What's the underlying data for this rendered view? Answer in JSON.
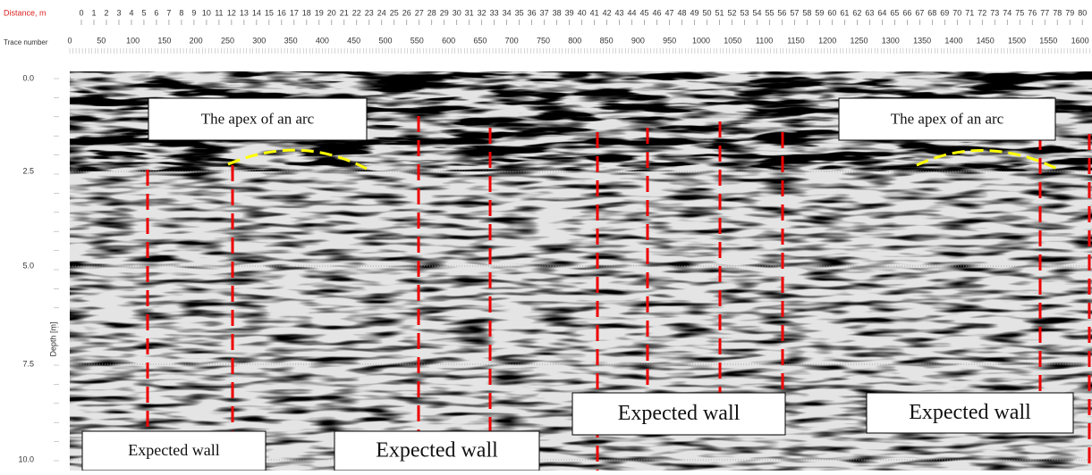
{
  "axes": {
    "distance": {
      "label": "Distance, m",
      "ticks": [
        0,
        1,
        2,
        3,
        4,
        5,
        6,
        7,
        8,
        9,
        10,
        11,
        12,
        13,
        14,
        15,
        16,
        17,
        18,
        19,
        20,
        21,
        22,
        23,
        24,
        25,
        26,
        27,
        28,
        29,
        30,
        31,
        32,
        33,
        34,
        35,
        36,
        37,
        38,
        39,
        40,
        41,
        42,
        43,
        44,
        45,
        46,
        47,
        48,
        49,
        50,
        51,
        52,
        53,
        54,
        55,
        56,
        57,
        58,
        59,
        60,
        61,
        62,
        63,
        64,
        65,
        66,
        67,
        68,
        69,
        70,
        71,
        72,
        73,
        74,
        75,
        76,
        77,
        78,
        79,
        80
      ]
    },
    "trace": {
      "label": "Trace number",
      "ticks": [
        0,
        50,
        100,
        150,
        200,
        250,
        300,
        350,
        400,
        450,
        500,
        550,
        600,
        650,
        700,
        750,
        800,
        850,
        900,
        950,
        1000,
        1050,
        1100,
        1150,
        1200,
        1250,
        1300,
        1350,
        1400,
        1450,
        1500,
        1550,
        1600
      ]
    },
    "depth": {
      "label": "Depth [m]",
      "ticks": [
        "0.0",
        "2.5",
        "5.0",
        "7.5",
        "10.0"
      ]
    }
  },
  "annotations": {
    "apex": [
      "The apex of an arc",
      "The apex of an arc"
    ],
    "walls": [
      "Expected wall",
      "Expected wall",
      "Expected wall",
      "Expected wall"
    ]
  }
}
